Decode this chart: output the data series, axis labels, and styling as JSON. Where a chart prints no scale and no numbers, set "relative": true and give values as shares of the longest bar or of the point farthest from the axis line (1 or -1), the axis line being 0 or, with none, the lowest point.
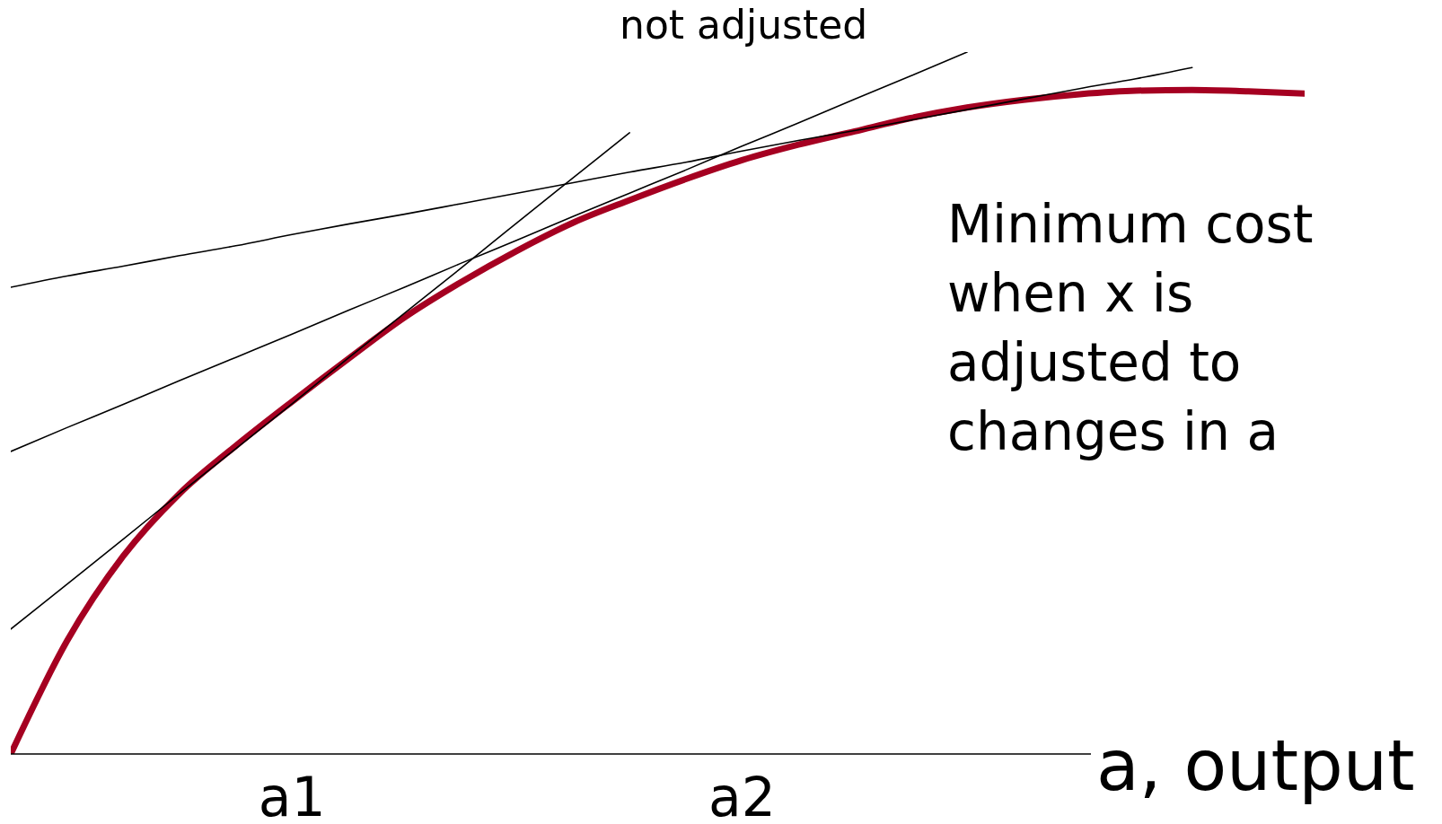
{
  "chart_data": {
    "type": "line",
    "relative": true,
    "xlabel": "a, output",
    "grid": false,
    "marker": "none",
    "line_style": "solid",
    "categories": [
      null,
      null,
      null,
      null,
      null,
      "a1",
      null,
      null,
      null,
      null,
      null,
      null,
      null,
      "a2",
      null,
      null,
      null,
      null,
      null,
      null,
      null,
      null,
      null,
      null
    ],
    "annotations": [
      "not adjusted",
      "Minimum cost when x is adjusted to changes in a"
    ],
    "series": [
      {
        "color": "#a50021",
        "values": [
          0,
          0.161,
          0.282,
          0.371,
          0.439,
          0.502,
          0.563,
          0.622,
          0.672,
          0.717,
          0.757,
          0.789,
          0.819,
          0.846,
          0.868,
          0.887,
          0.906,
          0.921,
          0.932,
          0.94,
          0.945,
          0.946,
          0.944,
          0.941
        ]
      },
      {
        "color": "#000000",
        "values": [
          0.178,
          0.242,
          0.306,
          0.371,
          0.435,
          0.499,
          0.564,
          0.628,
          0.692,
          0.757,
          0.821,
          0.885,
          null,
          null,
          null,
          null,
          null,
          null,
          null,
          null,
          null,
          null,
          null,
          null
        ]
      },
      {
        "color": "#000000",
        "values": [
          0.431,
          0.465,
          0.498,
          0.532,
          0.565,
          0.598,
          0.632,
          0.665,
          0.699,
          0.732,
          0.766,
          0.799,
          0.832,
          0.866,
          0.899,
          0.933,
          0.966,
          1,
          null,
          null,
          null,
          null,
          null,
          null
        ]
      },
      {
        "color": "#000000",
        "values": [
          0.665,
          0.681,
          0.695,
          0.71,
          0.724,
          0.74,
          0.755,
          0.769,
          0.784,
          0.799,
          0.814,
          0.829,
          0.843,
          0.859,
          0.874,
          0.888,
          0.903,
          0.918,
          0.933,
          0.948,
          0.962,
          0.978,
          null,
          null
        ]
      }
    ]
  }
}
